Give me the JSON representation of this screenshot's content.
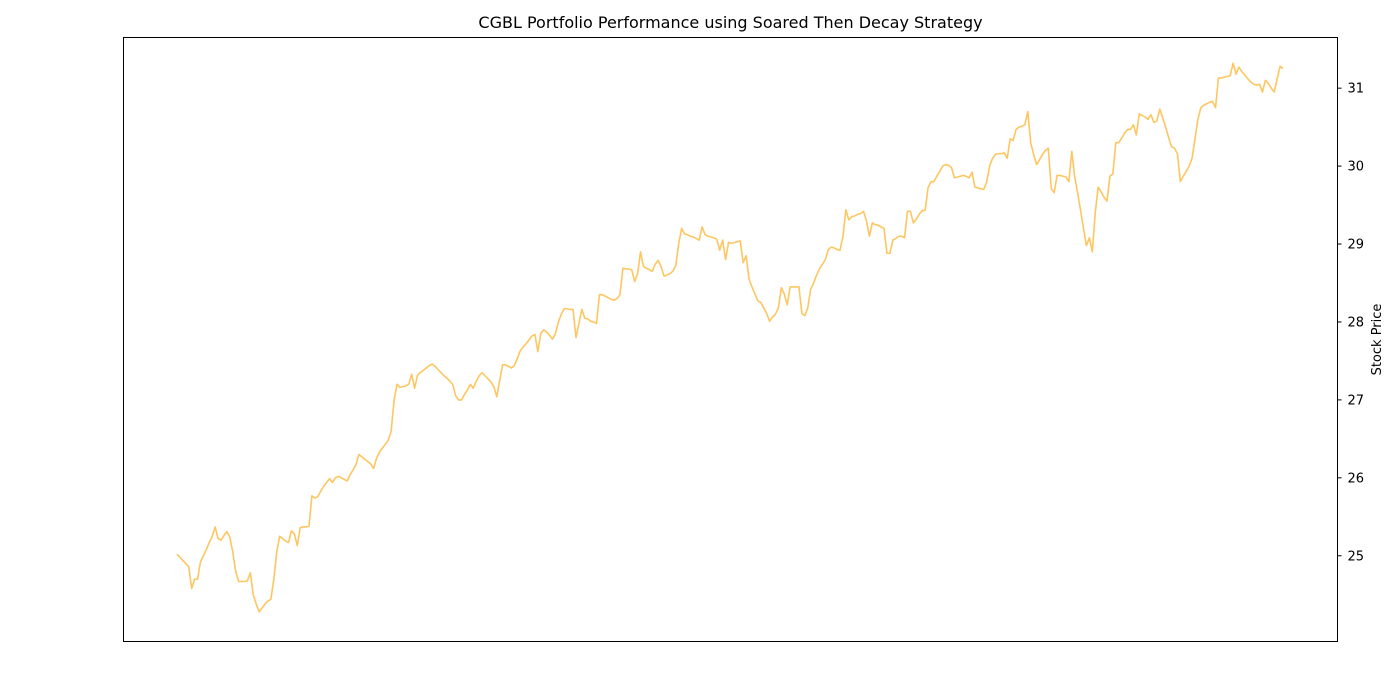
{
  "chart_data": {
    "type": "line",
    "title": "CGBL Portfolio Performance using Soared Then Decay Strategy",
    "xlabel": "",
    "ylabel": "Stock Price",
    "y_axis_side": "right",
    "x_tick_labels_visible": false,
    "grid": false,
    "legend": "none",
    "ylim": [
      23.9,
      31.65
    ],
    "yticks": [
      25,
      26,
      27,
      28,
      29,
      30,
      31
    ],
    "series": [
      {
        "color": "#fec660",
        "values": [
          25.02,
          24.98,
          24.94,
          24.9,
          24.86,
          24.58,
          24.7,
          24.7,
          24.92,
          25.0,
          25.08,
          25.17,
          25.25,
          25.37,
          25.22,
          25.2,
          25.26,
          25.31,
          25.24,
          25.05,
          24.8,
          24.67,
          24.67,
          24.67,
          24.68,
          24.78,
          24.5,
          24.38,
          24.28,
          24.33,
          24.38,
          24.42,
          24.44,
          24.7,
          25.05,
          25.25,
          25.22,
          25.19,
          25.17,
          25.32,
          25.28,
          25.13,
          25.36,
          25.37,
          25.37,
          25.38,
          25.77,
          25.74,
          25.76,
          25.83,
          25.89,
          25.94,
          25.99,
          25.94,
          26.0,
          26.02,
          26.0,
          25.98,
          25.96,
          26.04,
          26.1,
          26.17,
          26.3,
          26.27,
          26.24,
          26.21,
          26.18,
          26.12,
          26.25,
          26.33,
          26.38,
          26.43,
          26.48,
          26.6,
          27.0,
          27.2,
          27.16,
          27.17,
          27.18,
          27.2,
          27.33,
          27.15,
          27.32,
          27.35,
          27.38,
          27.41,
          27.44,
          27.46,
          27.43,
          27.39,
          27.35,
          27.31,
          27.28,
          27.24,
          27.2,
          27.05,
          27.0,
          27.0,
          27.07,
          27.13,
          27.2,
          27.15,
          27.24,
          27.31,
          27.35,
          27.31,
          27.27,
          27.23,
          27.17,
          27.04,
          27.25,
          27.45,
          27.45,
          27.43,
          27.41,
          27.44,
          27.53,
          27.63,
          27.68,
          27.72,
          27.77,
          27.82,
          27.84,
          27.62,
          27.85,
          27.9,
          27.87,
          27.83,
          27.78,
          27.85,
          28.0,
          28.1,
          28.17,
          28.17,
          28.16,
          28.16,
          27.8,
          27.98,
          28.16,
          28.05,
          28.04,
          28.01,
          28.0,
          27.98,
          28.35,
          28.35,
          28.33,
          28.31,
          28.29,
          28.28,
          28.3,
          28.35,
          28.69,
          28.68,
          28.68,
          28.67,
          28.52,
          28.62,
          28.9,
          28.71,
          28.69,
          28.67,
          28.65,
          28.74,
          28.79,
          28.71,
          28.59,
          28.6,
          28.62,
          28.65,
          28.72,
          29.0,
          29.2,
          29.13,
          29.12,
          29.1,
          29.09,
          29.07,
          29.05,
          29.22,
          29.12,
          29.1,
          29.09,
          29.08,
          29.06,
          28.92,
          29.05,
          28.8,
          29.02,
          29.01,
          29.02,
          29.03,
          29.04,
          28.76,
          28.85,
          28.55,
          28.45,
          28.36,
          28.27,
          28.25,
          28.18,
          28.11,
          28.01,
          28.06,
          28.1,
          28.18,
          28.44,
          28.36,
          28.22,
          28.45,
          28.45,
          28.45,
          28.45,
          28.11,
          28.08,
          28.18,
          28.42,
          28.5,
          28.6,
          28.68,
          28.74,
          28.8,
          28.93,
          28.96,
          28.95,
          28.93,
          28.92,
          29.1,
          29.44,
          29.31,
          29.35,
          29.36,
          29.38,
          29.39,
          29.42,
          29.3,
          29.1,
          29.27,
          29.25,
          29.24,
          29.22,
          29.2,
          28.88,
          28.88,
          29.05,
          29.07,
          29.1,
          29.1,
          29.08,
          29.42,
          29.42,
          29.27,
          29.32,
          29.38,
          29.43,
          29.43,
          29.72,
          29.8,
          29.8,
          29.87,
          29.93,
          30.0,
          30.02,
          30.01,
          29.98,
          29.85,
          29.86,
          29.87,
          29.88,
          29.87,
          29.85,
          29.92,
          29.73,
          29.72,
          29.71,
          29.7,
          29.8,
          30.0,
          30.1,
          30.15,
          30.16,
          30.16,
          30.17,
          30.1,
          30.35,
          30.33,
          30.47,
          30.5,
          30.51,
          30.53,
          30.7,
          30.3,
          30.15,
          30.02,
          30.08,
          30.15,
          30.2,
          30.23,
          29.71,
          29.66,
          29.88,
          29.88,
          29.87,
          29.86,
          29.8,
          30.19,
          29.86,
          29.66,
          29.43,
          29.2,
          28.98,
          29.08,
          28.9,
          29.4,
          29.73,
          29.67,
          29.6,
          29.55,
          29.87,
          29.9,
          30.3,
          30.3,
          30.36,
          30.42,
          30.47,
          30.47,
          30.53,
          30.4,
          30.67,
          30.65,
          30.63,
          30.6,
          30.66,
          30.56,
          30.58,
          30.73,
          30.62,
          30.5,
          30.37,
          30.25,
          30.23,
          30.16,
          29.8,
          29.87,
          29.93,
          30.0,
          30.1,
          30.35,
          30.6,
          30.75,
          30.78,
          30.8,
          30.82,
          30.83,
          30.75,
          31.13,
          31.13,
          31.14,
          31.15,
          31.16,
          31.32,
          31.18,
          31.27,
          31.21,
          31.17,
          31.12,
          31.08,
          31.05,
          31.04,
          31.05,
          30.95,
          31.1,
          31.06,
          31.0,
          30.95,
          31.12,
          31.28,
          31.25
        ]
      }
    ]
  }
}
